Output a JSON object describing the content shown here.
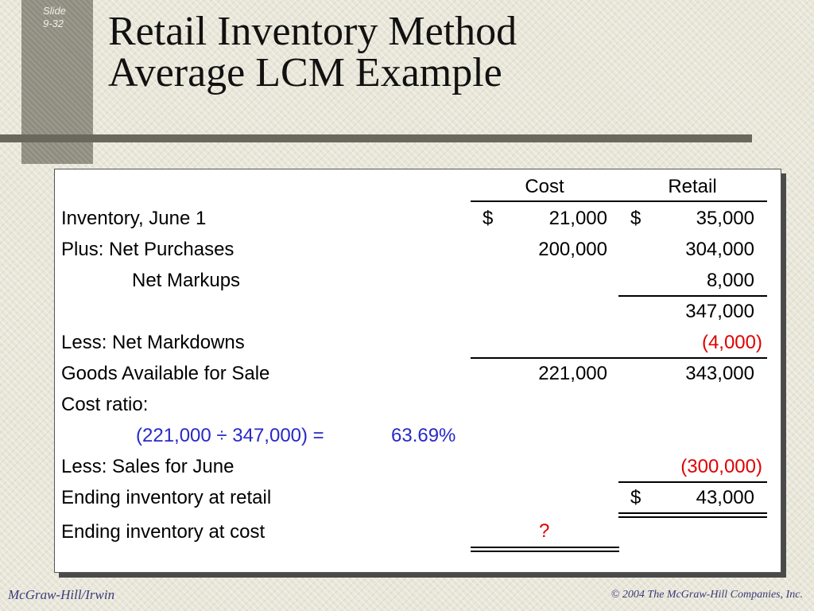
{
  "slide": {
    "label": "Slide",
    "number": "9-32",
    "title_line1": "Retail Inventory Method",
    "title_line2": "Average LCM Example"
  },
  "table": {
    "col_cost": "Cost",
    "col_retail": "Retail",
    "rows": [
      {
        "label": "Inventory, June 1",
        "cost_sign": "$",
        "cost": "21,000",
        "retail_sign": "$",
        "retail": "35,000"
      },
      {
        "label": "Plus: Net Purchases",
        "cost": "200,000",
        "retail": "304,000"
      },
      {
        "label": "Net Markups",
        "retail": "8,000"
      },
      {
        "retail": "347,000"
      },
      {
        "label": "Less: Net Markdowns",
        "retail": "(4,000)"
      },
      {
        "label": "Goods Available for Sale",
        "cost": "221,000",
        "retail": "343,000"
      },
      {
        "label": "Cost ratio:"
      },
      {
        "formula": "(221,000 ÷ 347,000) =",
        "ratio": "63.69%"
      },
      {
        "label": "Less: Sales for June",
        "retail": "(300,000)"
      },
      {
        "label": "Ending inventory at retail",
        "retail_sign": "$",
        "retail": "43,000"
      },
      {
        "label": "Ending inventory at cost",
        "cost": "?"
      }
    ]
  },
  "footer": {
    "publisher": "McGraw-Hill/Irwin",
    "copyright": "© 2004 The McGraw-Hill Companies, Inc."
  },
  "colors": {
    "negative": "#e00000",
    "formula": "#2828c8"
  }
}
